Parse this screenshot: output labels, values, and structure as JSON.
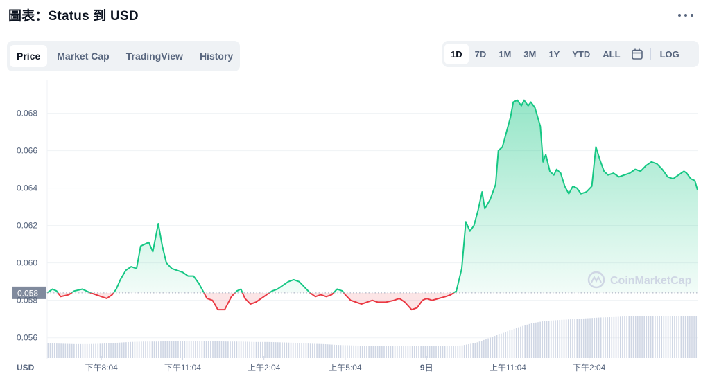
{
  "header": {
    "title": "圖表：Status 到 USD"
  },
  "tabs": [
    {
      "label": "Price",
      "active": true
    },
    {
      "label": "Market Cap",
      "active": false
    },
    {
      "label": "TradingView",
      "active": false
    },
    {
      "label": "History",
      "active": false
    }
  ],
  "ranges": [
    {
      "label": "1D",
      "active": true
    },
    {
      "label": "7D",
      "active": false
    },
    {
      "label": "1M",
      "active": false
    },
    {
      "label": "3M",
      "active": false
    },
    {
      "label": "1Y",
      "active": false
    },
    {
      "label": "YTD",
      "active": false
    },
    {
      "label": "ALL",
      "active": false
    }
  ],
  "log_label": "LOG",
  "watermark": "CoinMarketCap",
  "colors": {
    "up": "#16c784",
    "down": "#ea3943",
    "volume": "#cfd6e4",
    "grid": "#eff2f5"
  },
  "chart_data": {
    "type": "line",
    "ylabel": "USD",
    "ylim": [
      0.0551,
      0.0698
    ],
    "yticks": [
      0.056,
      0.058,
      0.06,
      0.062,
      0.064,
      0.066,
      0.068
    ],
    "ytick_labels": [
      "0.056",
      "0.058",
      "0.060",
      "0.062",
      "0.064",
      "0.066",
      "0.068"
    ],
    "reference_price": 0.0584,
    "reference_label": "0.058",
    "x_ticks": [
      "下午8:04",
      "下午11:04",
      "上午2:04",
      "上午5:04",
      "9日",
      "上午11:04",
      "下午2:04"
    ],
    "x_tick_hours": [
      2,
      5,
      8,
      11,
      14,
      17,
      20
    ],
    "series": [
      {
        "points": [
          [
            0.0,
            0.0584
          ],
          [
            0.2,
            0.0586
          ],
          [
            0.35,
            0.0585
          ],
          [
            0.5,
            0.0582
          ],
          [
            0.8,
            0.0583
          ],
          [
            1.0,
            0.0585
          ],
          [
            1.3,
            0.0586
          ],
          [
            1.6,
            0.0584
          ],
          [
            1.8,
            0.0583
          ],
          [
            2.0,
            0.0582
          ],
          [
            2.2,
            0.0581
          ],
          [
            2.4,
            0.0583
          ],
          [
            2.55,
            0.0586
          ],
          [
            2.7,
            0.0591
          ],
          [
            2.9,
            0.0596
          ],
          [
            3.1,
            0.0598
          ],
          [
            3.3,
            0.0597
          ],
          [
            3.45,
            0.0609
          ],
          [
            3.6,
            0.061
          ],
          [
            3.75,
            0.0611
          ],
          [
            3.9,
            0.0606
          ],
          [
            4.1,
            0.0621
          ],
          [
            4.25,
            0.0609
          ],
          [
            4.4,
            0.06
          ],
          [
            4.6,
            0.0597
          ],
          [
            4.8,
            0.0596
          ],
          [
            5.0,
            0.0595
          ],
          [
            5.2,
            0.0593
          ],
          [
            5.4,
            0.0593
          ],
          [
            5.6,
            0.0589
          ],
          [
            5.75,
            0.0585
          ],
          [
            5.9,
            0.0581
          ],
          [
            6.1,
            0.058
          ],
          [
            6.3,
            0.0575
          ],
          [
            6.55,
            0.0575
          ],
          [
            6.8,
            0.0582
          ],
          [
            7.0,
            0.0585
          ],
          [
            7.15,
            0.0586
          ],
          [
            7.3,
            0.0581
          ],
          [
            7.5,
            0.0578
          ],
          [
            7.7,
            0.0579
          ],
          [
            7.9,
            0.0581
          ],
          [
            8.1,
            0.0583
          ],
          [
            8.3,
            0.0585
          ],
          [
            8.5,
            0.0586
          ],
          [
            8.7,
            0.0588
          ],
          [
            8.9,
            0.059
          ],
          [
            9.1,
            0.0591
          ],
          [
            9.3,
            0.059
          ],
          [
            9.5,
            0.0587
          ],
          [
            9.7,
            0.0584
          ],
          [
            9.9,
            0.0582
          ],
          [
            10.1,
            0.0583
          ],
          [
            10.3,
            0.0582
          ],
          [
            10.5,
            0.0583
          ],
          [
            10.7,
            0.0586
          ],
          [
            10.9,
            0.0585
          ],
          [
            11.0,
            0.0583
          ],
          [
            11.2,
            0.058
          ],
          [
            11.4,
            0.0579
          ],
          [
            11.6,
            0.0578
          ],
          [
            11.8,
            0.0579
          ],
          [
            12.0,
            0.058
          ],
          [
            12.2,
            0.0579
          ],
          [
            12.5,
            0.0579
          ],
          [
            12.8,
            0.058
          ],
          [
            13.0,
            0.0581
          ],
          [
            13.2,
            0.0579
          ],
          [
            13.45,
            0.0575
          ],
          [
            13.65,
            0.0576
          ],
          [
            13.85,
            0.058
          ],
          [
            14.0,
            0.0581
          ],
          [
            14.2,
            0.058
          ],
          [
            14.45,
            0.0581
          ],
          [
            14.7,
            0.0582
          ],
          [
            14.9,
            0.0583
          ],
          [
            15.1,
            0.0585
          ],
          [
            15.3,
            0.0597
          ],
          [
            15.45,
            0.0622
          ],
          [
            15.6,
            0.0617
          ],
          [
            15.75,
            0.062
          ],
          [
            15.9,
            0.0628
          ],
          [
            16.05,
            0.0638
          ],
          [
            16.15,
            0.0629
          ],
          [
            16.35,
            0.0634
          ],
          [
            16.55,
            0.0642
          ],
          [
            16.65,
            0.066
          ],
          [
            16.8,
            0.0662
          ],
          [
            16.95,
            0.067
          ],
          [
            17.1,
            0.0678
          ],
          [
            17.2,
            0.0686
          ],
          [
            17.35,
            0.0687
          ],
          [
            17.5,
            0.0684
          ],
          [
            17.6,
            0.0687
          ],
          [
            17.75,
            0.0684
          ],
          [
            17.85,
            0.0686
          ],
          [
            18.0,
            0.0683
          ],
          [
            18.2,
            0.0673
          ],
          [
            18.3,
            0.0654
          ],
          [
            18.4,
            0.0658
          ],
          [
            18.55,
            0.0649
          ],
          [
            18.7,
            0.0647
          ],
          [
            18.8,
            0.065
          ],
          [
            18.95,
            0.0648
          ],
          [
            19.1,
            0.0641
          ],
          [
            19.25,
            0.0637
          ],
          [
            19.4,
            0.0641
          ],
          [
            19.55,
            0.064
          ],
          [
            19.7,
            0.0637
          ],
          [
            19.9,
            0.0638
          ],
          [
            20.1,
            0.0641
          ],
          [
            20.25,
            0.0662
          ],
          [
            20.4,
            0.0655
          ],
          [
            20.55,
            0.0649
          ],
          [
            20.7,
            0.0647
          ],
          [
            20.9,
            0.0648
          ],
          [
            21.1,
            0.0646
          ],
          [
            21.3,
            0.0647
          ],
          [
            21.5,
            0.0648
          ],
          [
            21.7,
            0.065
          ],
          [
            21.9,
            0.0649
          ],
          [
            22.1,
            0.0652
          ],
          [
            22.3,
            0.0654
          ],
          [
            22.5,
            0.0653
          ],
          [
            22.7,
            0.065
          ],
          [
            22.9,
            0.0646
          ],
          [
            23.1,
            0.0645
          ],
          [
            23.3,
            0.0647
          ],
          [
            23.5,
            0.0649
          ],
          [
            23.6,
            0.0648
          ],
          [
            23.75,
            0.0645
          ],
          [
            23.9,
            0.0644
          ],
          [
            24.0,
            0.0639
          ]
        ]
      }
    ],
    "volume": [
      0.35,
      0.34,
      0.33,
      0.33,
      0.34,
      0.36,
      0.38,
      0.39,
      0.39,
      0.4,
      0.4,
      0.4,
      0.4,
      0.39,
      0.39,
      0.38,
      0.38,
      0.37,
      0.36,
      0.34,
      0.33,
      0.31,
      0.3,
      0.29,
      0.29,
      0.28,
      0.28,
      0.28,
      0.28,
      0.28,
      0.3,
      0.36,
      0.48,
      0.6,
      0.72,
      0.82,
      0.88,
      0.9,
      0.92,
      0.94,
      0.96,
      0.97,
      0.99,
      1.0,
      1.0,
      1.0,
      1.0,
      1.0
    ]
  }
}
